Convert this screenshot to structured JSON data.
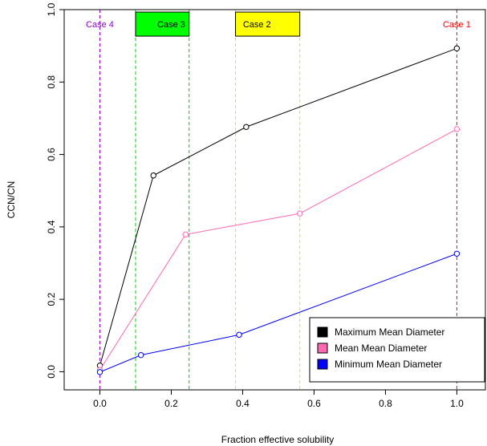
{
  "chart_data": {
    "type": "line",
    "title": "",
    "xlabel": "Fraction effective solubility",
    "ylabel": "CCN/CN",
    "xlim": [
      -0.1,
      1.08
    ],
    "ylim": [
      -0.05,
      1.0
    ],
    "x_ticks": [
      0.0,
      0.2,
      0.4,
      0.6,
      0.8,
      1.0
    ],
    "x_tick_labels": [
      "0.0",
      "0.2",
      "0.4",
      "0.6",
      "0.8",
      "1.0"
    ],
    "y_ticks": [
      0.0,
      0.2,
      0.4,
      0.6,
      0.8,
      1.0
    ],
    "y_tick_labels": [
      "0.0",
      "0.2",
      "0.4",
      "0.6",
      "0.8",
      "1.0"
    ],
    "grid": false,
    "legend_position": "bottom-right",
    "series": [
      {
        "name": "Maximum Mean Diameter",
        "color": "#000000",
        "points": [
          [
            0.0,
            0.017
          ],
          [
            0.15,
            0.542
          ],
          [
            0.41,
            0.676
          ],
          [
            1.0,
            0.893
          ]
        ]
      },
      {
        "name": "Mean Mean Diameter",
        "color": "#ff69b4",
        "points": [
          [
            0.0,
            0.005
          ],
          [
            0.24,
            0.379
          ],
          [
            0.56,
            0.437
          ],
          [
            1.0,
            0.67
          ]
        ]
      },
      {
        "name": "Minimum Mean Diameter",
        "color": "#0000ff",
        "points": [
          [
            0.0,
            -0.001
          ],
          [
            0.115,
            0.046
          ],
          [
            0.39,
            0.102
          ],
          [
            1.0,
            0.326
          ]
        ]
      }
    ],
    "vlines": [
      {
        "x": 0.0,
        "color": "#9400d3"
      },
      {
        "x": 0.1,
        "color": "#00cd00"
      },
      {
        "x": 0.25,
        "color": "#00cd00"
      },
      {
        "x": 0.38,
        "color": "#e5e500"
      },
      {
        "x": 0.56,
        "color": "#e5e500"
      },
      {
        "x": 1.0,
        "color": "#ff0000"
      }
    ],
    "annotations": [
      {
        "text": "Case 4",
        "x": 0.0,
        "y": 0.96,
        "color": "#9400d3",
        "box": null
      },
      {
        "text": "Case 3",
        "x": 0.2,
        "y": 0.96,
        "color": "#000000",
        "box": {
          "x0": 0.1,
          "x1": 0.25,
          "fill": "#00ff00"
        }
      },
      {
        "text": "Case 2",
        "x": 0.44,
        "y": 0.96,
        "color": "#000000",
        "box": {
          "x0": 0.38,
          "x1": 0.56,
          "fill": "#ffff00"
        }
      },
      {
        "text": "Case 1",
        "x": 1.0,
        "y": 0.96,
        "color": "#ff0000",
        "box": null
      }
    ]
  }
}
